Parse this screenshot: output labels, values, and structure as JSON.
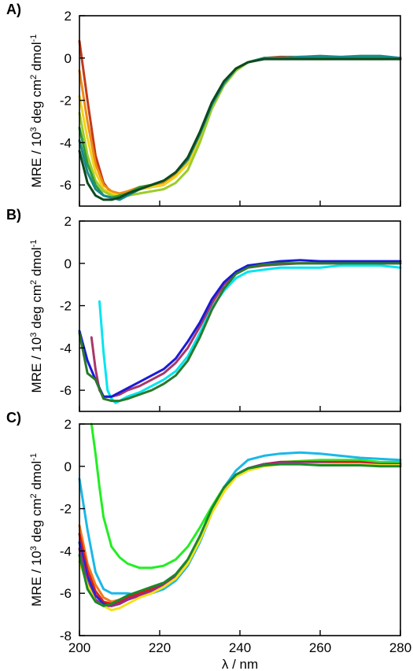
{
  "chart_data": [
    {
      "type": "line",
      "panel_label": "A)",
      "ylabel": "MRE / 10^3 deg cm^2 dmol^-1",
      "xlabel": "",
      "xlim": [
        200,
        280
      ],
      "ylim": [
        -7,
        2
      ],
      "yticks": [
        2,
        0,
        -2,
        -4,
        -6
      ],
      "xticks": [],
      "series": [
        {
          "color": "#c23a1a",
          "x": [
            200,
            202,
            204,
            206,
            208,
            210,
            212,
            215,
            218,
            221,
            224,
            227,
            230,
            233,
            236,
            239,
            242,
            246,
            250,
            255,
            260,
            265,
            270,
            275,
            280
          ],
          "y": [
            0.8,
            -2.0,
            -4.6,
            -5.9,
            -6.4,
            -6.5,
            -6.4,
            -6.2,
            -6.1,
            -6.0,
            -5.5,
            -4.9,
            -3.6,
            -2.2,
            -1.2,
            -0.5,
            -0.2,
            0.0,
            0.05,
            0.05,
            0.05,
            0.05,
            0.0,
            0.05,
            0.0
          ]
        },
        {
          "color": "#f08a12",
          "x": [
            200,
            202,
            204,
            206,
            208,
            210,
            212,
            215,
            218,
            221,
            224,
            227,
            230,
            233,
            236,
            239,
            242,
            246,
            250,
            255,
            260,
            265,
            270,
            275,
            280
          ],
          "y": [
            -0.6,
            -3.0,
            -5.0,
            -6.0,
            -6.3,
            -6.4,
            -6.3,
            -6.1,
            -6.0,
            -5.9,
            -5.5,
            -4.9,
            -3.7,
            -2.3,
            -1.2,
            -0.5,
            -0.2,
            0.0,
            0.0,
            0.05,
            0.05,
            0.0,
            0.05,
            0.0,
            0.0
          ]
        },
        {
          "color": "#f2d21a",
          "x": [
            200,
            202,
            204,
            206,
            208,
            210,
            212,
            215,
            218,
            221,
            224,
            227,
            230,
            233,
            236,
            239,
            242,
            246,
            250,
            255,
            260,
            265,
            270,
            275,
            280
          ],
          "y": [
            -1.8,
            -3.8,
            -5.4,
            -6.2,
            -6.4,
            -6.5,
            -6.4,
            -6.2,
            -6.1,
            -6.0,
            -5.6,
            -5.0,
            -3.8,
            -2.3,
            -1.2,
            -0.5,
            -0.2,
            0.0,
            0.0,
            0.05,
            0.0,
            0.0,
            0.05,
            0.05,
            0.0
          ]
        },
        {
          "color": "#9ccc2a",
          "x": [
            200,
            202,
            204,
            206,
            208,
            210,
            212,
            215,
            218,
            221,
            224,
            227,
            230,
            233,
            236,
            239,
            242,
            246,
            250,
            255,
            260,
            265,
            270,
            275,
            280
          ],
          "y": [
            -2.6,
            -4.6,
            -5.8,
            -6.3,
            -6.5,
            -6.6,
            -6.5,
            -6.4,
            -6.3,
            -6.2,
            -5.9,
            -5.3,
            -4.0,
            -2.4,
            -1.3,
            -0.6,
            -0.2,
            0.0,
            0.0,
            0.0,
            0.0,
            0.0,
            0.0,
            0.0,
            0.0
          ]
        },
        {
          "color": "#2e9a3a",
          "x": [
            200,
            202,
            204,
            206,
            208,
            210,
            212,
            215,
            218,
            221,
            224,
            227,
            230,
            233,
            236,
            239,
            242,
            246,
            250,
            255,
            260,
            265,
            270,
            275,
            280
          ],
          "y": [
            -3.3,
            -5.0,
            -6.0,
            -6.5,
            -6.6,
            -6.5,
            -6.4,
            -6.1,
            -6.0,
            -5.8,
            -5.4,
            -4.8,
            -3.6,
            -2.2,
            -1.2,
            -0.5,
            -0.2,
            0.0,
            0.0,
            0.0,
            0.0,
            0.0,
            0.0,
            0.0,
            0.0
          ]
        },
        {
          "color": "#178a8a",
          "x": [
            200,
            202,
            204,
            206,
            208,
            210,
            212,
            215,
            218,
            221,
            224,
            227,
            230,
            233,
            236,
            239,
            242,
            246,
            250,
            255,
            260,
            265,
            270,
            275,
            280
          ],
          "y": [
            -3.9,
            -5.4,
            -6.2,
            -6.5,
            -6.6,
            -6.7,
            -6.5,
            -6.2,
            -6.0,
            -5.8,
            -5.4,
            -4.8,
            -3.6,
            -2.2,
            -1.2,
            -0.5,
            -0.2,
            0.0,
            0.0,
            0.05,
            0.1,
            0.05,
            0.1,
            0.1,
            0.0
          ]
        },
        {
          "color": "#0d4a1e",
          "x": [
            200,
            202,
            204,
            206,
            208,
            210,
            212,
            215,
            218,
            221,
            224,
            227,
            230,
            233,
            236,
            239,
            242,
            246,
            250,
            255,
            260,
            265,
            270,
            275,
            280
          ],
          "y": [
            -4.4,
            -5.9,
            -6.5,
            -6.7,
            -6.7,
            -6.6,
            -6.4,
            -6.2,
            -6.0,
            -5.8,
            -5.4,
            -4.7,
            -3.5,
            -2.1,
            -1.1,
            -0.5,
            -0.2,
            -0.05,
            -0.05,
            -0.05,
            -0.05,
            -0.05,
            -0.05,
            -0.05,
            -0.05
          ]
        }
      ]
    },
    {
      "type": "line",
      "panel_label": "B)",
      "ylabel": "MRE / 10^3 deg cm^2 dmol^-1",
      "xlabel": "",
      "xlim": [
        200,
        280
      ],
      "ylim": [
        -7,
        2
      ],
      "yticks": [
        2,
        0,
        -2,
        -4,
        -6
      ],
      "xticks": [],
      "series": [
        {
          "color": "#00e5f0",
          "x": [
            205,
            206,
            207,
            208,
            209,
            210,
            212,
            215,
            218,
            221,
            224,
            227,
            230,
            233,
            236,
            239,
            242,
            246,
            250,
            255,
            260,
            265,
            270,
            275,
            280
          ],
          "y": [
            -1.8,
            -4.2,
            -6.0,
            -6.4,
            -6.6,
            -6.5,
            -6.3,
            -6.1,
            -5.8,
            -5.5,
            -5.1,
            -4.4,
            -3.3,
            -2.1,
            -1.3,
            -0.7,
            -0.4,
            -0.3,
            -0.2,
            -0.2,
            -0.2,
            -0.1,
            -0.1,
            -0.1,
            -0.2
          ]
        },
        {
          "color": "#a8386a",
          "x": [
            203,
            204,
            205,
            206,
            207,
            208,
            210,
            212,
            215,
            218,
            221,
            224,
            227,
            230,
            233,
            236,
            239,
            242,
            246,
            250,
            255,
            260,
            265,
            270,
            275,
            280
          ],
          "y": [
            -3.5,
            -5.0,
            -6.0,
            -6.3,
            -6.3,
            -6.3,
            -6.2,
            -6.0,
            -5.8,
            -5.5,
            -5.2,
            -4.7,
            -4.0,
            -3.0,
            -1.9,
            -1.0,
            -0.5,
            -0.2,
            -0.1,
            -0.05,
            0.0,
            0.0,
            0.0,
            0.05,
            0.0,
            0.0
          ]
        },
        {
          "color": "#1a1ad8",
          "x": [
            200,
            202,
            204,
            206,
            208,
            210,
            212,
            215,
            218,
            221,
            224,
            227,
            230,
            233,
            236,
            239,
            242,
            246,
            250,
            255,
            260,
            265,
            270,
            275,
            280
          ],
          "y": [
            -3.2,
            -4.6,
            -5.5,
            -6.3,
            -6.3,
            -6.1,
            -5.9,
            -5.6,
            -5.3,
            -5.0,
            -4.5,
            -3.7,
            -2.8,
            -1.7,
            -0.9,
            -0.4,
            -0.1,
            0.0,
            0.1,
            0.15,
            0.1,
            0.1,
            0.1,
            0.1,
            0.1
          ]
        },
        {
          "color": "#2a7a2a",
          "x": [
            200,
            202,
            204,
            206,
            208,
            210,
            212,
            215,
            218,
            221,
            224,
            227,
            230,
            233,
            236,
            239,
            242,
            246,
            250,
            255,
            260,
            265,
            270,
            275,
            280
          ],
          "y": [
            -3.3,
            -5.2,
            -5.5,
            -6.4,
            -6.5,
            -6.5,
            -6.4,
            -6.2,
            -6.0,
            -5.7,
            -5.3,
            -4.6,
            -3.5,
            -2.2,
            -1.2,
            -0.5,
            -0.2,
            -0.05,
            0.0,
            0.0,
            0.0,
            0.0,
            0.0,
            0.0,
            0.0
          ]
        }
      ]
    },
    {
      "type": "line",
      "panel_label": "C)",
      "ylabel": "MRE / 10^3 deg cm^2 dmol^-1",
      "xlabel": "λ / nm",
      "xlim": [
        200,
        280
      ],
      "ylim": [
        -8,
        2
      ],
      "yticks": [
        2,
        0,
        -2,
        -4,
        -6,
        -8
      ],
      "xticks": [
        200,
        220,
        240,
        260,
        280
      ],
      "series": [
        {
          "color": "#22ee22",
          "x": [
            203,
            204,
            205,
            206,
            208,
            210,
            212,
            215,
            218,
            221,
            224,
            227,
            230,
            233,
            236,
            239,
            242,
            246,
            250,
            255,
            260,
            265,
            270,
            275,
            280
          ],
          "y": [
            2.0,
            0.6,
            -1.0,
            -2.4,
            -3.8,
            -4.3,
            -4.6,
            -4.8,
            -4.8,
            -4.7,
            -4.4,
            -3.8,
            -2.9,
            -1.9,
            -1.0,
            -0.4,
            -0.1,
            0.1,
            0.2,
            0.25,
            0.3,
            0.3,
            0.3,
            0.2,
            0.2
          ]
        },
        {
          "color": "#1ab8e8",
          "x": [
            200,
            202,
            204,
            206,
            208,
            210,
            212,
            215,
            218,
            221,
            224,
            227,
            230,
            233,
            236,
            239,
            242,
            246,
            250,
            255,
            260,
            265,
            270,
            275,
            280
          ],
          "y": [
            -0.6,
            -3.0,
            -5.0,
            -5.8,
            -6.0,
            -6.0,
            -6.0,
            -6.1,
            -6.0,
            -5.8,
            -5.4,
            -4.7,
            -3.6,
            -2.2,
            -1.0,
            -0.2,
            0.3,
            0.5,
            0.6,
            0.65,
            0.6,
            0.5,
            0.4,
            0.35,
            0.3
          ]
        },
        {
          "color": "#f07a1a",
          "x": [
            200,
            202,
            204,
            206,
            208,
            210,
            212,
            215,
            218,
            221,
            224,
            227,
            230,
            233,
            236,
            239,
            242,
            246,
            250,
            255,
            260,
            265,
            270,
            275,
            280
          ],
          "y": [
            -2.8,
            -4.6,
            -5.6,
            -6.2,
            -6.4,
            -6.3,
            -6.2,
            -6.0,
            -5.9,
            -5.7,
            -5.3,
            -4.6,
            -3.5,
            -2.2,
            -1.2,
            -0.5,
            -0.1,
            0.1,
            0.2,
            0.2,
            0.2,
            0.2,
            0.2,
            0.1,
            0.1
          ]
        },
        {
          "color": "#e01a1a",
          "x": [
            200,
            202,
            204,
            206,
            208,
            210,
            212,
            215,
            218,
            221,
            224,
            227,
            230,
            233,
            236,
            239,
            242,
            246,
            250,
            255,
            260,
            265,
            270,
            275,
            280
          ],
          "y": [
            -3.2,
            -4.9,
            -5.9,
            -6.4,
            -6.5,
            -6.4,
            -6.2,
            -6.0,
            -5.8,
            -5.6,
            -5.2,
            -4.5,
            -3.4,
            -2.1,
            -1.1,
            -0.4,
            -0.1,
            0.1,
            0.2,
            0.2,
            0.2,
            0.2,
            0.2,
            0.1,
            0.1
          ]
        },
        {
          "color": "#1a2ad8",
          "x": [
            200,
            202,
            204,
            206,
            208,
            210,
            212,
            215,
            218,
            221,
            224,
            227,
            230,
            233,
            236,
            239,
            242,
            246,
            250,
            255,
            260,
            265,
            270,
            275,
            280
          ],
          "y": [
            -3.6,
            -5.2,
            -6.1,
            -6.5,
            -6.6,
            -6.5,
            -6.3,
            -6.1,
            -5.9,
            -5.6,
            -5.2,
            -4.5,
            -3.4,
            -2.1,
            -1.1,
            -0.4,
            -0.1,
            0.1,
            0.15,
            0.15,
            0.15,
            0.1,
            0.1,
            0.1,
            0.1
          ]
        },
        {
          "color": "#9a2a8a",
          "x": [
            200,
            202,
            204,
            206,
            208,
            210,
            212,
            215,
            218,
            221,
            224,
            227,
            230,
            233,
            236,
            239,
            242,
            246,
            250,
            255,
            260,
            265,
            270,
            275,
            280
          ],
          "y": [
            -3.9,
            -5.5,
            -6.3,
            -6.6,
            -6.6,
            -6.5,
            -6.3,
            -6.1,
            -5.9,
            -5.6,
            -5.2,
            -4.5,
            -3.4,
            -2.1,
            -1.1,
            -0.4,
            -0.1,
            0.1,
            0.15,
            0.15,
            0.15,
            0.1,
            0.1,
            0.1,
            0.1
          ]
        },
        {
          "color": "#f5e01a",
          "x": [
            200,
            202,
            204,
            206,
            208,
            210,
            212,
            215,
            218,
            221,
            224,
            227,
            230,
            233,
            236,
            239,
            242,
            246,
            250,
            255,
            260,
            265,
            270,
            275,
            280
          ],
          "y": [
            -4.5,
            -5.6,
            -6.4,
            -6.6,
            -6.8,
            -6.7,
            -6.5,
            -6.2,
            -6.0,
            -5.7,
            -5.3,
            -4.6,
            -3.5,
            -2.2,
            -1.2,
            -0.5,
            -0.2,
            0.0,
            0.1,
            0.1,
            0.1,
            0.1,
            0.1,
            0.05,
            0.05
          ]
        },
        {
          "color": "#178a2a",
          "x": [
            200,
            202,
            204,
            206,
            208,
            210,
            212,
            215,
            218,
            221,
            224,
            227,
            230,
            233,
            236,
            239,
            242,
            246,
            250,
            255,
            260,
            265,
            270,
            275,
            280
          ],
          "y": [
            -4.2,
            -5.8,
            -6.4,
            -6.6,
            -6.5,
            -6.3,
            -6.1,
            -5.9,
            -5.7,
            -5.5,
            -5.1,
            -4.4,
            -3.3,
            -2.0,
            -1.0,
            -0.4,
            -0.1,
            0.05,
            0.1,
            0.1,
            0.05,
            0.05,
            0.05,
            0.0,
            0.0
          ]
        }
      ]
    }
  ]
}
